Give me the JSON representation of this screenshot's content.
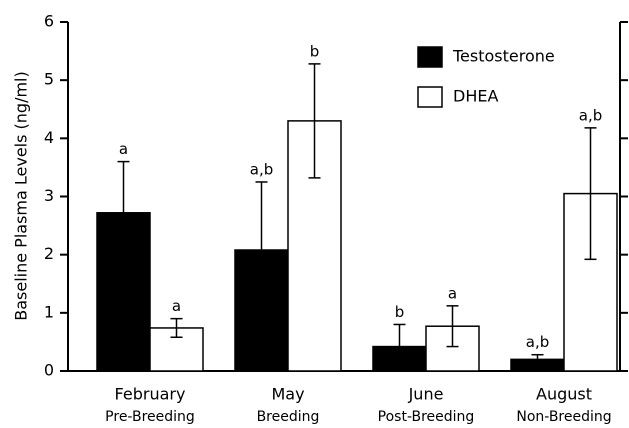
{
  "chart_data": {
    "type": "bar",
    "ylabel": "Baseline Plasma Levels (ng/ml)",
    "categories": [
      "February",
      "May",
      "June",
      "August"
    ],
    "subcategories": [
      "Pre-Breeding",
      "Breeding",
      "Post-Breeding",
      "Non-Breeding"
    ],
    "series": [
      {
        "name": "Testosterone",
        "color": "#000000",
        "values": [
          2.72,
          2.08,
          0.42,
          0.2
        ],
        "errors": [
          0.88,
          1.17,
          0.38,
          0.08
        ],
        "annotations": [
          "a",
          "a,b",
          "b",
          "a,b"
        ]
      },
      {
        "name": "DHEA",
        "color": "#ffffff",
        "values": [
          0.74,
          4.3,
          0.77,
          3.05
        ],
        "errors": [
          0.16,
          0.98,
          0.35,
          1.13
        ],
        "annotations": [
          "a",
          "b",
          "a",
          "a,b"
        ]
      }
    ],
    "ylim": [
      0,
      6
    ],
    "yticks": [
      0,
      1,
      2,
      3,
      4,
      5,
      6
    ]
  }
}
